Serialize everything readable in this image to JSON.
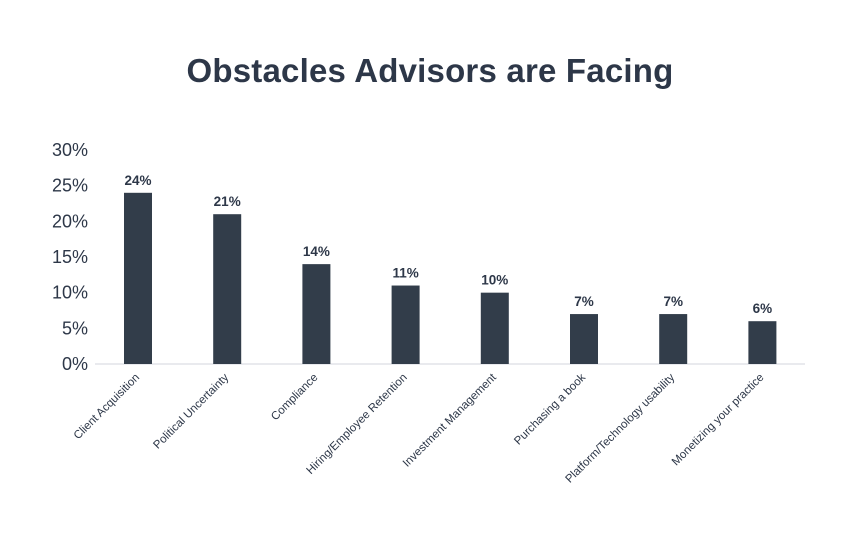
{
  "chart_data": {
    "type": "bar",
    "title": "Obstacles Advisors are Facing",
    "xlabel": "",
    "ylabel": "",
    "categories": [
      "Client Acquisition",
      "Political Uncertainty",
      "Compliance",
      "Hiring/Employee Retention",
      "Investment Management",
      "Purchasing a book",
      "Platform/Technology usability",
      "Monetizing your practice"
    ],
    "values": [
      24,
      21,
      14,
      11,
      10,
      7,
      7,
      6
    ],
    "value_labels": [
      "24%",
      "21%",
      "14%",
      "11%",
      "10%",
      "7%",
      "7%",
      "6%"
    ],
    "ylim": [
      0,
      30
    ],
    "yticks": [
      0,
      5,
      10,
      15,
      20,
      25,
      30
    ],
    "ytick_labels": [
      "0%",
      "5%",
      "10%",
      "15%",
      "20%",
      "25%",
      "30%"
    ],
    "grid": false,
    "legend": "none",
    "bar_color": "#323d4a",
    "text_color": "#2d3748"
  }
}
